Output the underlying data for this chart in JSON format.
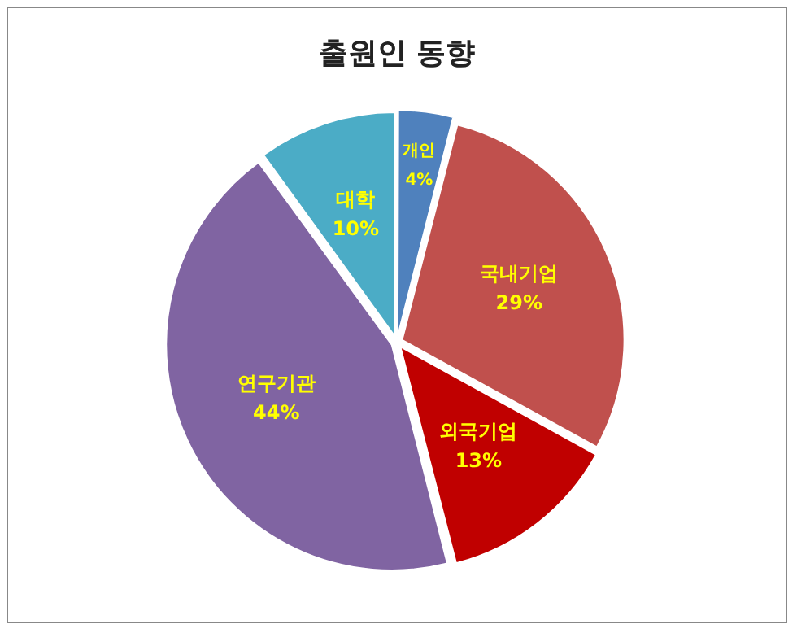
{
  "chart_data": {
    "type": "pie",
    "title": "출원인 동향",
    "categories": [
      "개인",
      "국내기업",
      "외국기업",
      "연구기관",
      "대학"
    ],
    "values": [
      4,
      29,
      13,
      44,
      10
    ],
    "colors": [
      "#4f81bd",
      "#c0504d",
      "#c00000",
      "#8064a2",
      "#4bacc6"
    ],
    "value_labels": [
      "4%",
      "29%",
      "13%",
      "44%",
      "10%"
    ],
    "legend": false
  }
}
